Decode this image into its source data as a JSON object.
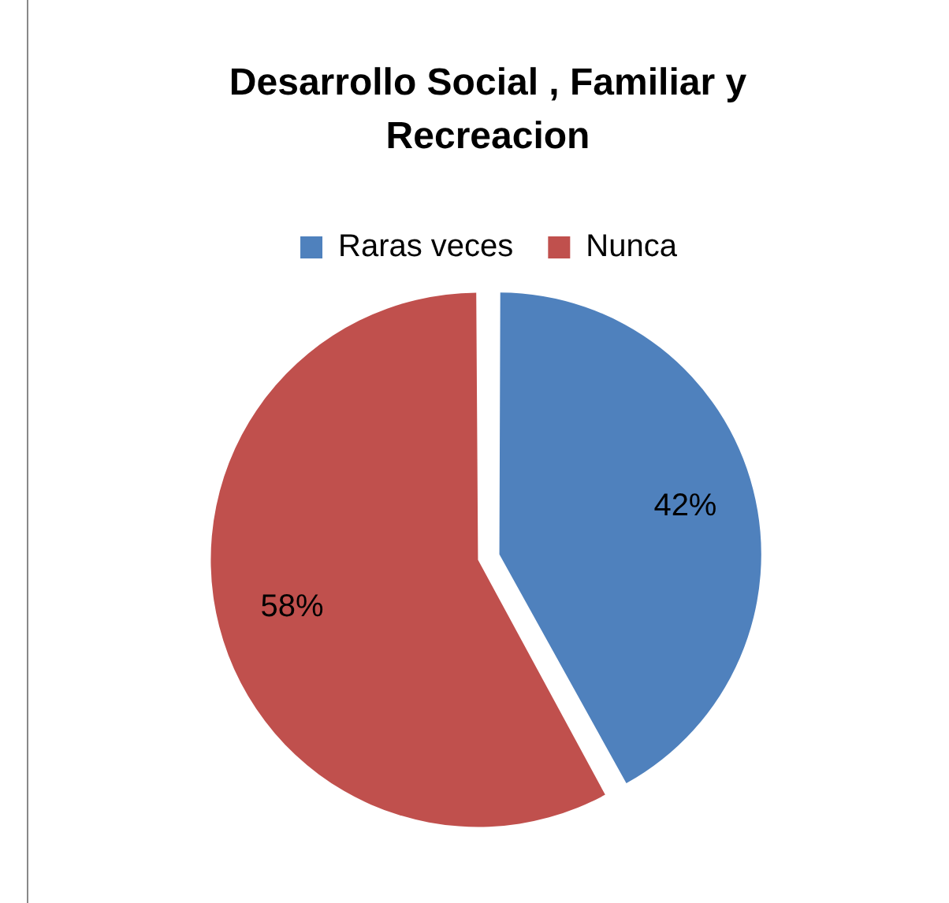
{
  "chart_data": {
    "type": "pie",
    "title": "Desarrollo Social , Familiar y Recreacion",
    "categories": [
      "Raras veces",
      "Nunca"
    ],
    "values": [
      42,
      58
    ],
    "colors": [
      "#4f81bd",
      "#c0504d"
    ],
    "value_labels": [
      "42%",
      "58%"
    ],
    "legend": "top"
  }
}
